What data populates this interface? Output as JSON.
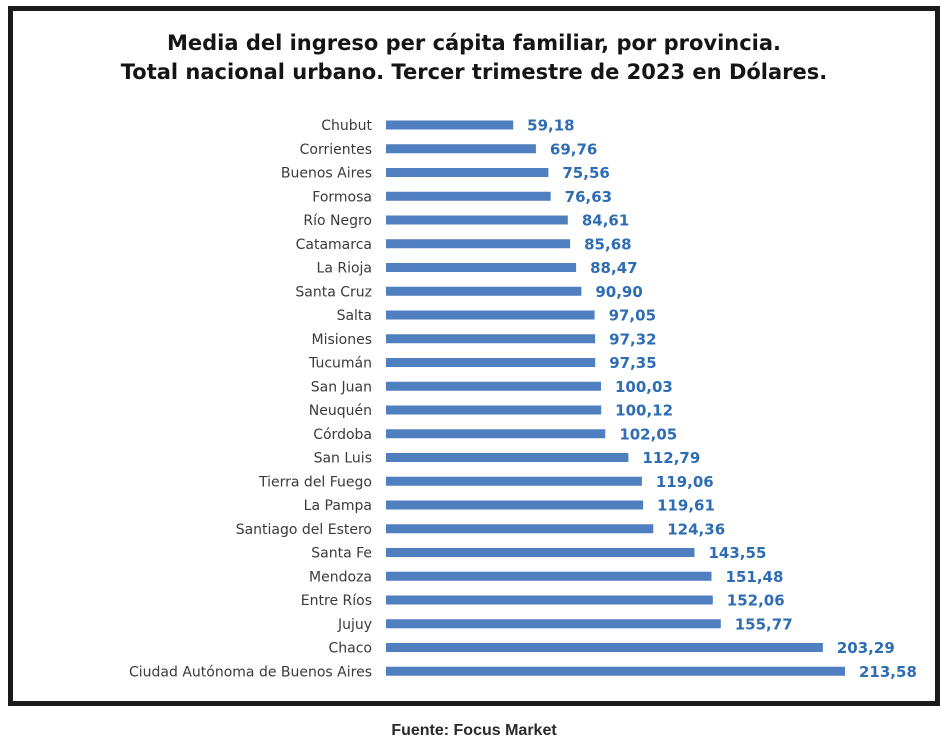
{
  "source": "Fuente: Focus Market",
  "chart_data": {
    "type": "bar",
    "orientation": "horizontal",
    "title_lines": [
      "Media del ingreso per cápita familiar, por provincia.",
      "Total nacional urbano. Tercer trimestre  de 2023 en Dólares."
    ],
    "xlabel": "",
    "ylabel": "",
    "grid": false,
    "xlim": [
      0,
      213.58
    ],
    "bar_color": "#4f7fbf",
    "label_color": "#2e6db4",
    "categories": [
      "Chubut",
      "Corrientes",
      "Buenos Aires",
      "Formosa",
      "Río Negro",
      "Catamarca",
      "La Rioja",
      "Santa Cruz",
      "Salta",
      "Misiones",
      "Tucumán",
      "San Juan",
      "Neuquén",
      "Córdoba",
      "San Luis",
      "Tierra del Fuego",
      "La Pampa",
      "Santiago del Estero",
      "Santa Fe",
      "Mendoza",
      "Entre Ríos",
      "Jujuy",
      "Chaco",
      "Ciudad Autónoma de Buenos Aires"
    ],
    "values": [
      59.18,
      69.76,
      75.56,
      76.63,
      84.61,
      85.68,
      88.47,
      90.9,
      97.05,
      97.32,
      97.35,
      100.03,
      100.12,
      102.05,
      112.79,
      119.06,
      119.61,
      124.36,
      143.55,
      151.48,
      152.06,
      155.77,
      203.29,
      213.58
    ],
    "value_labels": [
      "59,18",
      "69,76",
      "75,56",
      "76,63",
      "84,61",
      "85,68",
      "88,47",
      "90,90",
      "97,05",
      "97,32",
      "97,35",
      "100,03",
      "100,12",
      "102,05",
      "112,79",
      "119,06",
      "119,61",
      "124,36",
      "143,55",
      "151,48",
      "152,06",
      "155,77",
      "203,29",
      "213,58"
    ]
  }
}
